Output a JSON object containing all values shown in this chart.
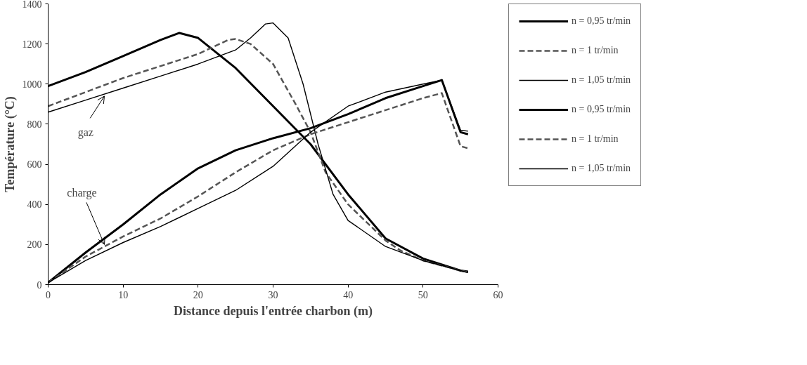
{
  "chart_data": {
    "type": "line",
    "xlabel": "Distance depuis l'entrée charbon (m)",
    "ylabel": "Température (°C)",
    "xlim": [
      0,
      60
    ],
    "xticks": [
      0,
      10,
      20,
      30,
      40,
      50,
      60
    ],
    "ylim": [
      0,
      1400
    ],
    "yticks": [
      0,
      200,
      400,
      600,
      800,
      1000,
      1200,
      1400
    ],
    "grid": false,
    "legend": "right",
    "marker": "none",
    "annotations": [
      {
        "text": "gaz",
        "x": 7.5,
        "y": 940
      },
      {
        "text": "charge",
        "x": 7.5,
        "y": 200
      }
    ],
    "series": [
      {
        "name": "n = 0,95 tr/min",
        "color": "#000000",
        "line_style": "solid",
        "x": [
          0,
          5,
          10,
          15,
          17.5,
          20,
          25,
          30,
          35,
          40,
          45,
          50,
          55,
          56
        ],
        "values": [
          990,
          1060,
          1140,
          1220,
          1255,
          1230,
          1080,
          890,
          700,
          450,
          230,
          130,
          70,
          65
        ]
      },
      {
        "name": "n = 1 tr/min",
        "color": "#555555",
        "line_style": "dashed",
        "x": [
          0,
          5,
          10,
          15,
          20,
          24,
          25,
          27,
          30,
          33,
          35,
          37,
          40,
          45,
          47,
          50,
          55,
          56
        ],
        "values": [
          890,
          960,
          1030,
          1090,
          1150,
          1220,
          1225,
          1200,
          1100,
          900,
          760,
          560,
          400,
          220,
          170,
          120,
          70,
          62
        ]
      },
      {
        "name": "n = 1,05 tr/min",
        "color": "#000000",
        "line_style": "solid",
        "x": [
          0,
          5,
          10,
          15,
          20,
          25,
          27,
          29,
          30,
          32,
          34,
          36,
          38,
          40,
          45,
          50,
          55,
          56
        ],
        "values": [
          860,
          920,
          980,
          1040,
          1100,
          1170,
          1230,
          1300,
          1305,
          1230,
          1000,
          700,
          450,
          320,
          190,
          120,
          70,
          60
        ]
      },
      {
        "name": "n = 0,95 tr/min",
        "color": "#000000",
        "line_style": "solid",
        "x": [
          0,
          5,
          10,
          15,
          20,
          25,
          30,
          35,
          40,
          45,
          50,
          52.5,
          55,
          56
        ],
        "values": [
          10,
          160,
          300,
          450,
          580,
          670,
          730,
          780,
          850,
          930,
          990,
          1020,
          760,
          750
        ]
      },
      {
        "name": "n = 1 tr/min",
        "color": "#555555",
        "line_style": "dashed",
        "x": [
          0,
          5,
          10,
          15,
          20,
          25,
          30,
          35,
          40,
          45,
          50,
          52.5,
          55,
          56
        ],
        "values": [
          10,
          140,
          240,
          330,
          440,
          560,
          670,
          750,
          810,
          870,
          930,
          955,
          690,
          680
        ]
      },
      {
        "name": "n = 1,05 tr/min",
        "color": "#000000",
        "line_style": "solid",
        "x": [
          0,
          5,
          10,
          15,
          20,
          25,
          30,
          35,
          40,
          45,
          50,
          52.5,
          55,
          56
        ],
        "values": [
          10,
          120,
          210,
          290,
          380,
          470,
          590,
          760,
          890,
          960,
          1000,
          1020,
          770,
          765
        ]
      }
    ]
  }
}
